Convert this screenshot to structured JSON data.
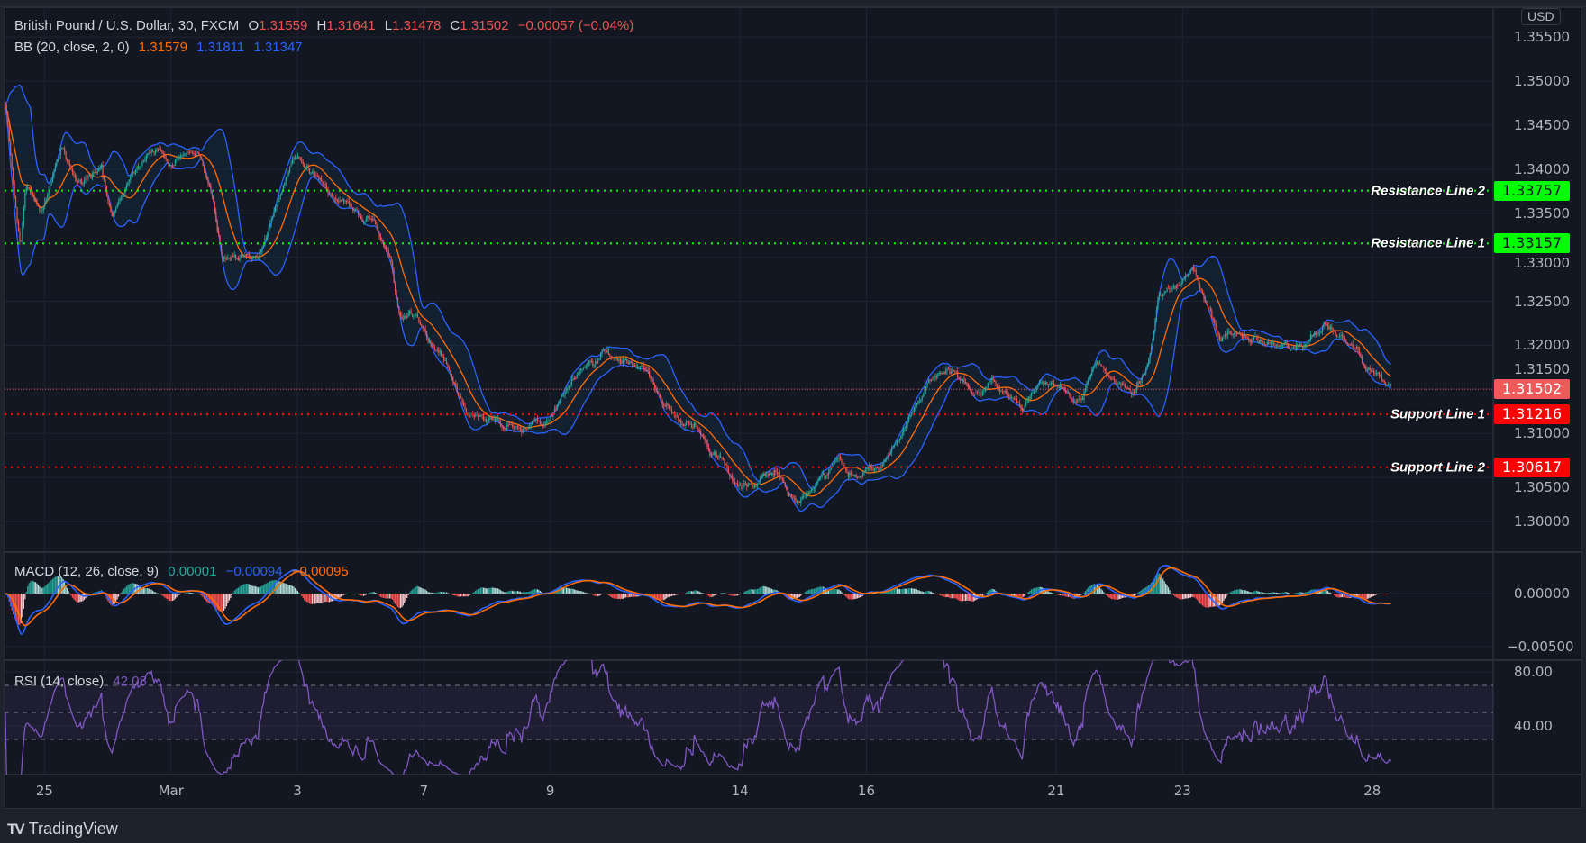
{
  "symbol": {
    "name": "British Pound / U.S. Dollar, 30, FXCM",
    "o_label": "O",
    "o": "1.31559",
    "h_label": "H",
    "h": "1.31641",
    "l_label": "L",
    "l": "1.31478",
    "c_label": "C",
    "c": "1.31502",
    "change": "−0.00057 (−0.04%)"
  },
  "bb": {
    "label": "BB (20, close, 2, 0)",
    "basis": "1.31579",
    "upper": "1.31811",
    "lower": "1.31347"
  },
  "macd": {
    "label": "MACD (12, 26, close, 9)",
    "hist": "0.00001",
    "macd": "−0.00094",
    "signal": "−0.00095"
  },
  "rsi": {
    "label": "RSI (14, close)",
    "value": "42.08"
  },
  "currency": "USD",
  "brand": "TradingView",
  "price_axis": [
    "1.35500",
    "1.35000",
    "1.34500",
    "1.34000",
    "1.33500",
    "1.33000",
    "1.32500",
    "1.32000",
    "1.31500",
    "1.31000",
    "1.30500",
    "1.30000"
  ],
  "macd_axis": [
    "0.00000",
    "−0.00500"
  ],
  "rsi_axis": [
    "80.00",
    "40.00"
  ],
  "time_axis": [
    {
      "label": "25",
      "day": 0
    },
    {
      "label": "Mar",
      "day": 2
    },
    {
      "label": "3",
      "day": 4
    },
    {
      "label": "7",
      "day": 6
    },
    {
      "label": "9",
      "day": 8
    },
    {
      "label": "14",
      "day": 11
    },
    {
      "label": "16",
      "day": 13
    },
    {
      "label": "21",
      "day": 16
    },
    {
      "label": "23",
      "day": 18
    },
    {
      "label": "28",
      "day": 21
    }
  ],
  "levels": [
    {
      "label": "Resistance Line 2",
      "price": 1.33757,
      "tag": "1.33757",
      "kind": "resistance"
    },
    {
      "label": "Resistance Line 1",
      "price": 1.33157,
      "tag": "1.33157",
      "kind": "resistance"
    },
    {
      "label": "Support Line 1",
      "price": 1.31216,
      "tag": "1.31216",
      "kind": "support"
    },
    {
      "label": "Support Line 2",
      "price": 1.30617,
      "tag": "1.30617",
      "kind": "support"
    }
  ],
  "current_price": {
    "price": 1.31502,
    "tag": "1.31502"
  },
  "colors": {
    "background": "#131722",
    "up": "#26a69a",
    "down": "#ef5350",
    "bb_band": "#2962ff",
    "bb_basis": "#ff6d00",
    "macd_line": "#2962ff",
    "signal_line": "#ff6d00",
    "rsi_line": "#7e57c2",
    "resistance": "#00ff00",
    "support": "#ff0000",
    "current": "#f05a5a",
    "grid": "#1f2431"
  },
  "chart_data": {
    "type": "candlestick",
    "title": "British Pound / U.S. Dollar, 30, FXCM",
    "x_unit": "trading day (0 = Feb 25)",
    "bars_per_day": 48,
    "xlim": [
      -0.62,
      21.31
    ],
    "ylim": [
      1.2985,
      1.3565
    ],
    "close_path": [
      [
        -0.62,
        1.347
      ],
      [
        -0.38,
        1.33
      ],
      [
        -0.3,
        1.338
      ],
      [
        -0.06,
        1.335
      ],
      [
        0.26,
        1.342
      ],
      [
        0.58,
        1.338
      ],
      [
        0.9,
        1.34
      ],
      [
        1.06,
        1.334
      ],
      [
        1.38,
        1.339
      ],
      [
        1.7,
        1.342
      ],
      [
        2.02,
        1.341
      ],
      [
        2.42,
        1.342
      ],
      [
        2.66,
        1.337
      ],
      [
        2.82,
        1.33
      ],
      [
        3.14,
        1.331
      ],
      [
        3.38,
        1.329
      ],
      [
        3.62,
        1.335
      ],
      [
        3.94,
        1.341
      ],
      [
        4.26,
        1.339
      ],
      [
        4.58,
        1.337
      ],
      [
        4.82,
        1.336
      ],
      [
        5.14,
        1.335
      ],
      [
        5.46,
        1.33
      ],
      [
        5.62,
        1.323
      ],
      [
        5.78,
        1.323
      ],
      [
        6.02,
        1.321
      ],
      [
        6.34,
        1.318
      ],
      [
        6.66,
        1.312
      ],
      [
        6.98,
        1.311
      ],
      [
        7.3,
        1.311
      ],
      [
        7.62,
        1.311
      ],
      [
        8.02,
        1.311
      ],
      [
        8.34,
        1.316
      ],
      [
        8.58,
        1.318
      ],
      [
        8.9,
        1.319
      ],
      [
        9.22,
        1.318
      ],
      [
        9.54,
        1.317
      ],
      [
        9.78,
        1.313
      ],
      [
        10.02,
        1.311
      ],
      [
        10.34,
        1.31
      ],
      [
        10.66,
        1.308
      ],
      [
        10.98,
        1.305
      ],
      [
        11.22,
        1.304
      ],
      [
        11.54,
        1.306
      ],
      [
        11.94,
        1.302
      ],
      [
        12.18,
        1.304
      ],
      [
        12.58,
        1.307
      ],
      [
        12.9,
        1.305
      ],
      [
        13.22,
        1.306
      ],
      [
        13.54,
        1.309
      ],
      [
        13.78,
        1.313
      ],
      [
        14.02,
        1.316
      ],
      [
        14.42,
        1.317
      ],
      [
        14.66,
        1.314
      ],
      [
        14.98,
        1.315
      ],
      [
        15.3,
        1.314
      ],
      [
        15.46,
        1.313
      ],
      [
        15.78,
        1.316
      ],
      [
        16.1,
        1.316
      ],
      [
        16.42,
        1.314
      ],
      [
        16.66,
        1.318
      ],
      [
        16.9,
        1.316
      ],
      [
        17.22,
        1.314
      ],
      [
        17.46,
        1.318
      ],
      [
        17.62,
        1.326
      ],
      [
        17.94,
        1.327
      ],
      [
        18.18,
        1.329
      ],
      [
        18.34,
        1.325
      ],
      [
        18.58,
        1.321
      ],
      [
        18.9,
        1.321
      ],
      [
        19.3,
        1.32
      ],
      [
        19.7,
        1.32
      ],
      [
        19.94,
        1.32
      ],
      [
        20.26,
        1.322
      ],
      [
        20.58,
        1.32
      ],
      [
        20.9,
        1.318
      ],
      [
        21.14,
        1.316
      ],
      [
        21.31,
        1.31502
      ]
    ],
    "last": {
      "open": 1.31559,
      "high": 1.31641,
      "low": 1.31478,
      "close": 1.31502
    },
    "indicators": {
      "bb": {
        "length": 20,
        "mult": 2
      },
      "macd": {
        "fast": 12,
        "slow": 26,
        "signal": 9,
        "ylim": [
          -0.0075,
          0.0035
        ]
      },
      "rsi": {
        "length": 14,
        "bands": [
          70,
          50,
          30
        ],
        "ylim": [
          20,
          90
        ]
      }
    }
  }
}
